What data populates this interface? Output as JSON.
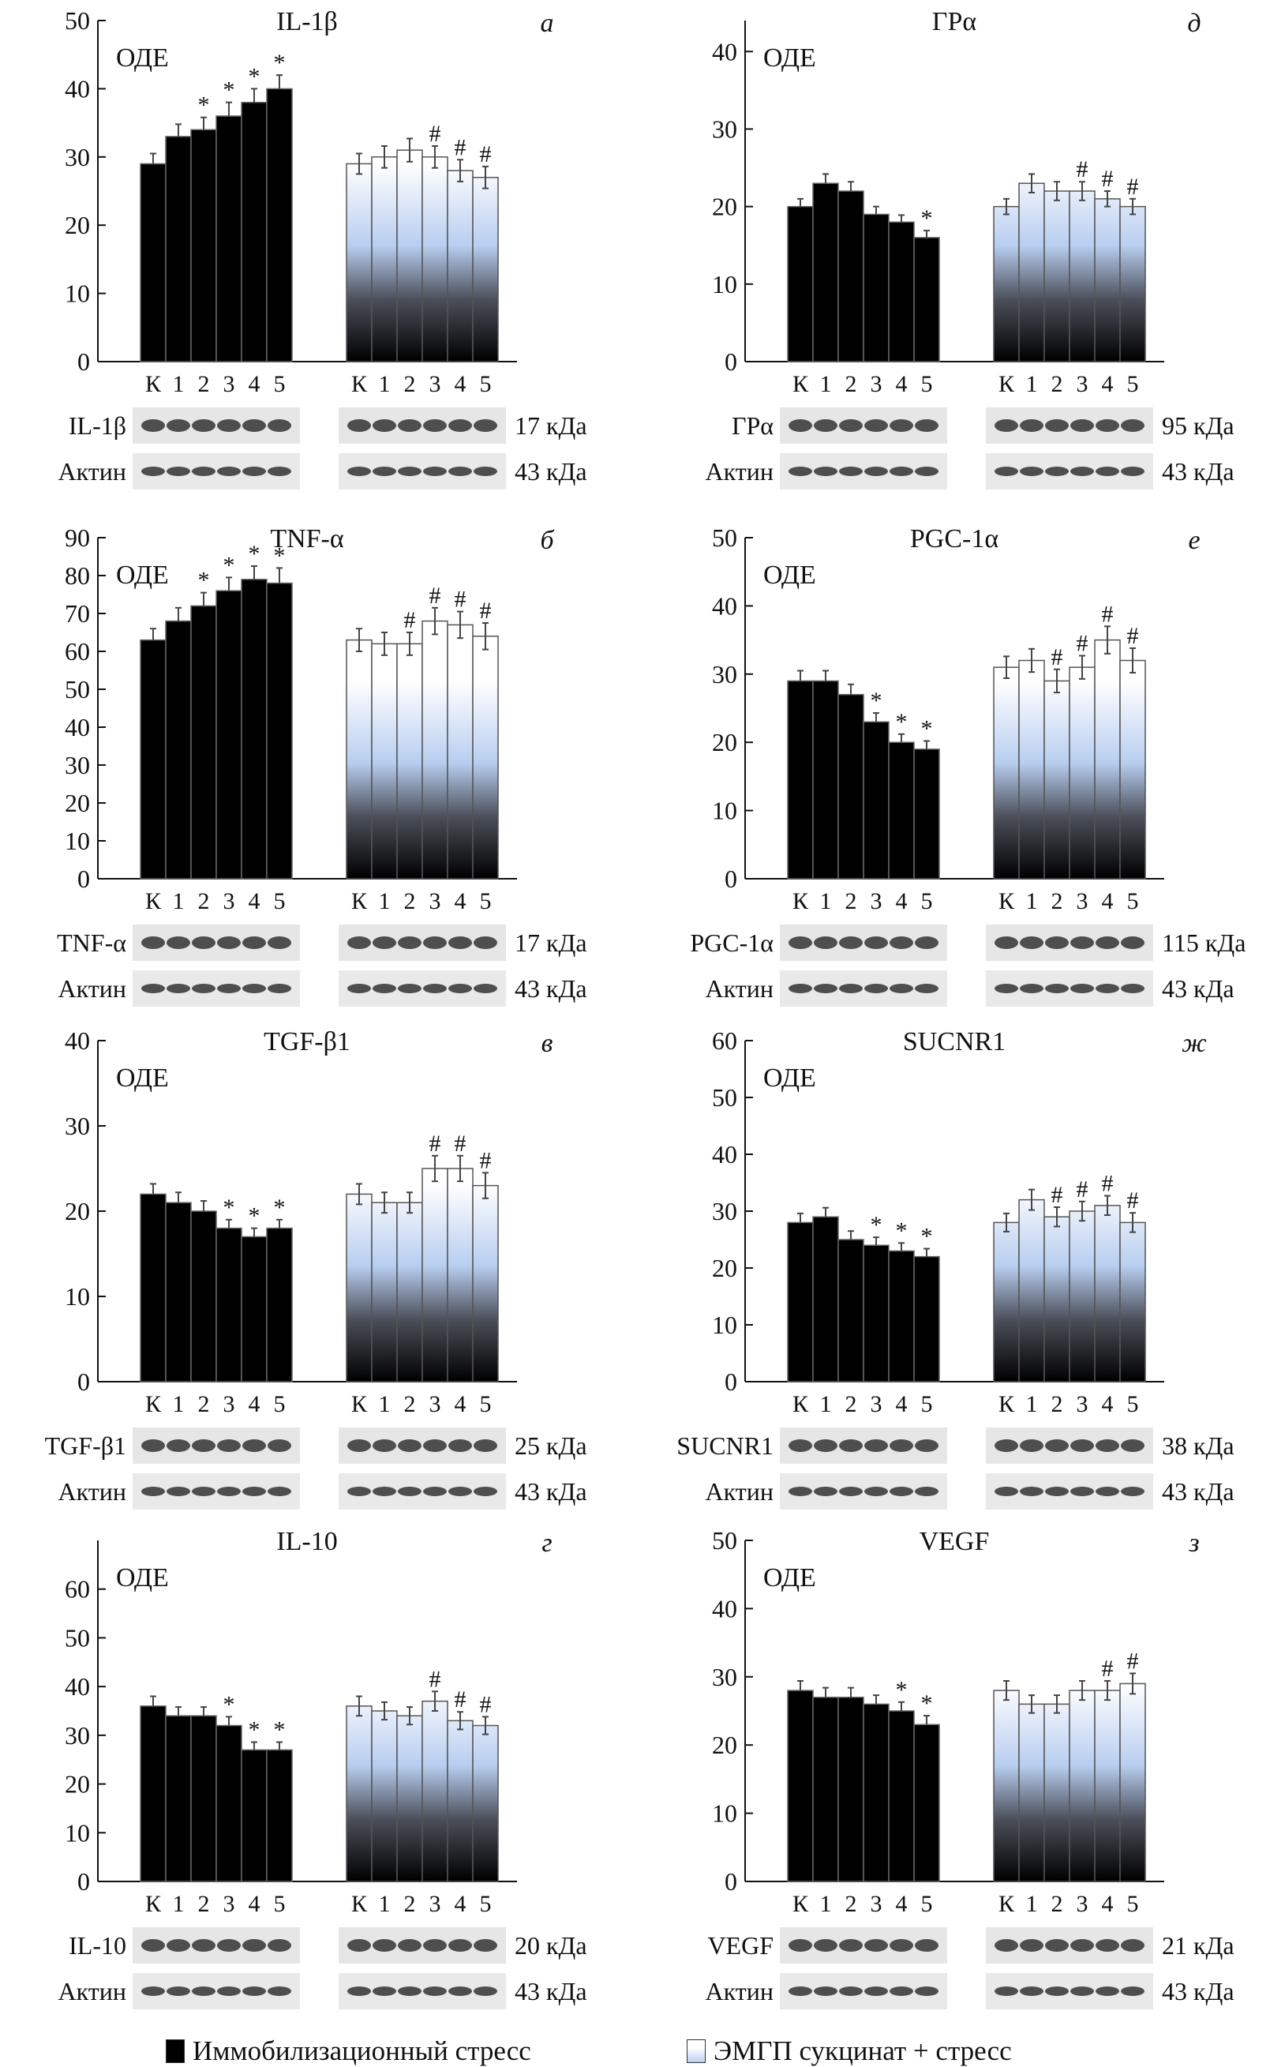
{
  "groups_x_labels": [
    "К",
    "1",
    "2",
    "3",
    "4",
    "5"
  ],
  "y_unit_label": "ОДЕ",
  "actin_label": "Актин",
  "actin_kda": "43 кДа",
  "legend": {
    "stress": "Иммобилизационный стресс",
    "succinate": "ЭМГП сукцинат + стресс"
  },
  "colors": {
    "stress": "#000000",
    "succinate_top": "#ffffff",
    "succinate_mid": "#b8cef0",
    "succinate_bottom": "#000000"
  },
  "chart_data": [
    {
      "type": "bar",
      "panel_letter": "а",
      "title": "IL-1β",
      "blot_label": "IL-1β",
      "kda": "17 кДа",
      "ylim": [
        0,
        50
      ],
      "yticks": [
        0,
        10,
        20,
        30,
        40,
        50
      ],
      "series": [
        {
          "name": "Иммобилизационный стресс",
          "values": [
            29,
            33,
            34,
            36,
            38,
            40
          ],
          "errors": [
            1.5,
            1.8,
            1.8,
            2,
            2,
            2
          ],
          "marks": [
            "",
            "",
            "*",
            "*",
            "*",
            "*"
          ]
        },
        {
          "name": "ЭМГП сукцинат + стресс",
          "values": [
            29,
            30,
            31,
            30,
            28,
            27
          ],
          "errors": [
            1.5,
            1.6,
            1.7,
            1.6,
            1.6,
            1.6
          ],
          "marks": [
            "",
            "",
            "",
            "#",
            "#",
            "#"
          ]
        }
      ]
    },
    {
      "type": "bar",
      "panel_letter": "д",
      "title": "ГРα",
      "blot_label": "ГРα",
      "kda": "95 кДа",
      "ylim": [
        0,
        44
      ],
      "yticks": [
        0,
        10,
        20,
        30,
        40
      ],
      "series": [
        {
          "name": "Иммобилизационный стресс",
          "values": [
            20,
            23,
            22,
            19,
            18,
            16
          ],
          "errors": [
            1,
            1.2,
            1.2,
            1,
            0.9,
            0.9
          ],
          "marks": [
            "",
            "",
            "",
            "",
            "",
            "*"
          ]
        },
        {
          "name": "ЭМГП сукцинат + стресс",
          "values": [
            20,
            23,
            22,
            22,
            21,
            20
          ],
          "errors": [
            1,
            1.2,
            1.2,
            1.2,
            1,
            1
          ],
          "marks": [
            "",
            "",
            "",
            "#",
            "#",
            "#"
          ]
        }
      ]
    },
    {
      "type": "bar",
      "panel_letter": "б",
      "title": "TNF-α",
      "blot_label": "TNF-α",
      "kda": "17 кДа",
      "ylim": [
        0,
        90
      ],
      "yticks": [
        0,
        10,
        20,
        30,
        40,
        50,
        60,
        70,
        80,
        90
      ],
      "series": [
        {
          "name": "Иммобилизационный стресс",
          "values": [
            63,
            68,
            72,
            76,
            79,
            78
          ],
          "errors": [
            3,
            3.5,
            3.5,
            3.5,
            3.5,
            4
          ],
          "marks": [
            "",
            "",
            "*",
            "*",
            "*",
            "*"
          ]
        },
        {
          "name": "ЭМГП сукцинат + стресс",
          "values": [
            63,
            62,
            62,
            68,
            67,
            64
          ],
          "errors": [
            3,
            3,
            3,
            3.5,
            3.5,
            3.5
          ],
          "marks": [
            "",
            "",
            "#",
            "#",
            "#",
            "#"
          ]
        }
      ]
    },
    {
      "type": "bar",
      "panel_letter": "е",
      "title": "PGC-1α",
      "blot_label": "PGC-1α",
      "kda": "115 кДа",
      "ylim": [
        0,
        50
      ],
      "yticks": [
        0,
        10,
        20,
        30,
        40,
        50
      ],
      "series": [
        {
          "name": "Иммобилизационный стресс",
          "values": [
            29,
            29,
            27,
            23,
            20,
            19
          ],
          "errors": [
            1.5,
            1.5,
            1.5,
            1.3,
            1.2,
            1.2
          ],
          "marks": [
            "",
            "",
            "",
            "*",
            "*",
            "*"
          ]
        },
        {
          "name": "ЭМГП сукцинат + стресс",
          "values": [
            31,
            32,
            29,
            31,
            35,
            32
          ],
          "errors": [
            1.6,
            1.7,
            1.7,
            1.7,
            2,
            1.8
          ],
          "marks": [
            "",
            "",
            "#",
            "#",
            "#",
            "#"
          ]
        }
      ]
    },
    {
      "type": "bar",
      "panel_letter": "в",
      "title": "TGF-β1",
      "blot_label": "TGF-β1",
      "kda": "25 кДа",
      "ylim": [
        0,
        40
      ],
      "yticks": [
        0,
        10,
        20,
        30,
        40
      ],
      "series": [
        {
          "name": "Иммобилизационный стресс",
          "values": [
            22,
            21,
            20,
            18,
            17,
            18
          ],
          "errors": [
            1.2,
            1.2,
            1.2,
            1,
            1,
            1
          ],
          "marks": [
            "",
            "",
            "",
            "*",
            "*",
            "*"
          ]
        },
        {
          "name": "ЭМГП сукцинат + стресс",
          "values": [
            22,
            21,
            21,
            25,
            25,
            23
          ],
          "errors": [
            1.2,
            1.2,
            1.2,
            1.5,
            1.5,
            1.5
          ],
          "marks": [
            "",
            "",
            "",
            "#",
            "#",
            "#"
          ]
        }
      ]
    },
    {
      "type": "bar",
      "panel_letter": "ж",
      "title": "SUCNR1",
      "blot_label": "SUCNR1",
      "kda": "38 кДа",
      "ylim": [
        0,
        60
      ],
      "yticks": [
        0,
        10,
        20,
        30,
        40,
        50,
        60
      ],
      "series": [
        {
          "name": "Иммобилизационный стресс",
          "values": [
            28,
            29,
            25,
            24,
            23,
            22
          ],
          "errors": [
            1.6,
            1.6,
            1.5,
            1.4,
            1.4,
            1.4
          ],
          "marks": [
            "",
            "",
            "",
            "*",
            "*",
            "*"
          ]
        },
        {
          "name": "ЭМГП сукцинат + стресс",
          "values": [
            28,
            32,
            29,
            30,
            31,
            28
          ],
          "errors": [
            1.6,
            1.8,
            1.7,
            1.7,
            1.7,
            1.7
          ],
          "marks": [
            "",
            "",
            "#",
            "#",
            "#",
            "#"
          ]
        }
      ]
    },
    {
      "type": "bar",
      "panel_letter": "г",
      "title": "IL-10",
      "blot_label": "IL-10",
      "kda": "20 кДа",
      "ylim": [
        0,
        70
      ],
      "yticks": [
        0,
        10,
        20,
        30,
        40,
        50,
        60
      ],
      "series": [
        {
          "name": "Иммобилизационный стресс",
          "values": [
            36,
            34,
            34,
            32,
            27,
            27
          ],
          "errors": [
            2,
            1.8,
            1.8,
            1.8,
            1.6,
            1.6
          ],
          "marks": [
            "",
            "",
            "",
            "*",
            "*",
            "*"
          ]
        },
        {
          "name": "ЭМГП сукцинат + стресс",
          "values": [
            36,
            35,
            34,
            37,
            33,
            32
          ],
          "errors": [
            2,
            1.8,
            1.8,
            2,
            1.8,
            1.8
          ],
          "marks": [
            "",
            "",
            "",
            "#",
            "#",
            "#"
          ]
        }
      ]
    },
    {
      "type": "bar",
      "panel_letter": "з",
      "title": "VEGF",
      "blot_label": "VEGF",
      "kda": "21 кДа",
      "ylim": [
        0,
        50
      ],
      "yticks": [
        0,
        10,
        20,
        30,
        40,
        50
      ],
      "series": [
        {
          "name": "Иммобилизационный стресс",
          "values": [
            28,
            27,
            27,
            26,
            25,
            23
          ],
          "errors": [
            1.4,
            1.4,
            1.4,
            1.3,
            1.3,
            1.3
          ],
          "marks": [
            "",
            "",
            "",
            "",
            "*",
            "*"
          ]
        },
        {
          "name": "ЭМГП сукцинат + стресс",
          "values": [
            28,
            26,
            26,
            28,
            28,
            29
          ],
          "errors": [
            1.4,
            1.3,
            1.3,
            1.4,
            1.4,
            1.5
          ],
          "marks": [
            "",
            "",
            "",
            "",
            "#",
            "#"
          ]
        }
      ]
    }
  ]
}
